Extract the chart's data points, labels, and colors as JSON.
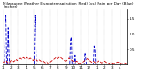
{
  "title": "Milwaukee Weather Evapotranspiration (Red) (vs) Rain per Day (Blue) (Inches)",
  "background_color": "#ffffff",
  "grid_color": "#aaaaaa",
  "et_color": "#cc0000",
  "rain_color": "#0000cc",
  "ylim": [
    0,
    1.8
  ],
  "et_values": [
    0.08,
    0.1,
    0.09,
    0.07,
    0.1,
    0.12,
    0.08,
    0.06,
    0.05,
    0.08,
    0.12,
    0.15,
    0.14,
    0.1,
    0.12,
    0.14,
    0.16,
    0.18,
    0.16,
    0.14,
    0.18,
    0.2,
    0.22,
    0.2,
    0.18,
    0.22,
    0.24,
    0.22,
    0.2,
    0.18,
    0.22,
    0.24,
    0.2,
    0.18,
    0.2,
    0.22,
    0.2,
    0.18,
    0.16,
    0.14,
    0.18,
    0.2,
    0.18,
    0.16,
    0.14,
    0.12,
    0.14,
    0.16,
    0.14,
    0.12,
    0.1,
    0.12,
    0.1,
    0.08,
    0.06,
    0.08,
    0.1,
    0.08,
    0.06,
    0.05,
    0.08,
    0.1,
    0.12,
    0.14,
    0.16,
    0.18,
    0.2,
    0.22,
    0.24,
    0.22,
    0.2,
    0.22,
    0.24,
    0.26,
    0.24,
    0.22,
    0.2,
    0.18,
    0.16,
    0.14,
    0.12,
    0.14,
    0.16,
    0.18,
    0.2,
    0.22,
    0.2,
    0.18,
    0.16,
    0.14,
    0.12,
    0.1,
    0.08,
    0.1,
    0.12,
    0.1,
    0.08,
    0.06,
    0.05,
    0.04,
    0.05,
    0.06,
    0.08,
    0.1,
    0.12,
    0.14,
    0.16,
    0.18,
    0.2,
    0.18,
    0.16,
    0.14,
    0.12,
    0.1,
    0.08,
    0.1,
    0.12,
    0.1,
    0.08,
    0.06,
    0.08,
    0.1,
    0.12,
    0.14,
    0.12,
    0.1,
    0.08,
    0.06,
    0.08,
    0.1,
    0.12,
    0.1,
    0.08,
    0.06,
    0.05,
    0.04,
    0.05,
    0.06,
    0.08,
    0.07,
    0.06,
    0.05,
    0.04,
    0.05,
    0.06,
    0.07,
    0.08,
    0.09,
    0.08,
    0.07,
    0.06,
    0.05,
    0.04,
    0.03,
    0.04,
    0.05,
    0.06,
    0.05,
    0.04,
    0.03
  ],
  "rain_values": [
    0.0,
    0.0,
    0.0,
    1.4,
    1.6,
    0.0,
    0.0,
    1.2,
    0.4,
    0.0,
    0.0,
    0.0,
    0.0,
    0.0,
    0.0,
    0.0,
    0.0,
    0.0,
    0.0,
    0.0,
    0.0,
    0.0,
    0.0,
    0.0,
    0.0,
    0.0,
    0.0,
    0.0,
    0.0,
    0.0,
    0.0,
    0.0,
    0.0,
    0.0,
    0.0,
    0.0,
    0.0,
    0.0,
    0.0,
    0.0,
    0.0,
    1.6,
    1.2,
    0.0,
    0.0,
    0.0,
    0.0,
    0.0,
    0.0,
    0.0,
    0.0,
    0.0,
    0.0,
    0.0,
    0.0,
    0.0,
    0.0,
    0.0,
    0.0,
    0.0,
    0.0,
    0.0,
    0.0,
    0.0,
    0.0,
    0.0,
    0.0,
    0.0,
    0.0,
    0.0,
    0.0,
    0.0,
    0.0,
    0.0,
    0.0,
    0.0,
    0.0,
    0.0,
    0.0,
    0.0,
    0.0,
    0.0,
    0.0,
    0.0,
    0.0,
    0.0,
    0.0,
    0.8,
    0.9,
    0.0,
    0.0,
    0.0,
    0.3,
    0.0,
    0.0,
    0.0,
    0.0,
    0.0,
    0.0,
    0.0,
    0.0,
    0.0,
    0.0,
    0.0,
    0.0,
    0.4,
    0.2,
    0.0,
    0.0,
    0.0,
    0.0,
    0.0,
    0.0,
    0.0,
    0.0,
    0.0,
    0.0,
    0.6,
    0.5,
    0.0,
    0.0,
    0.0,
    0.0,
    0.0,
    0.0,
    0.0,
    0.0,
    0.0,
    0.0,
    0.0,
    0.0,
    0.0,
    0.0,
    0.0,
    0.0,
    0.0,
    0.0,
    0.0,
    0.0,
    0.0,
    0.0,
    0.0,
    0.0,
    0.0,
    0.0,
    0.0,
    0.0,
    0.0,
    0.0,
    0.0,
    0.0,
    0.0,
    0.0,
    0.0,
    0.0,
    0.0,
    0.0,
    0.0,
    0.0,
    0.0
  ],
  "x_tick_positions": [
    0,
    10,
    20,
    30,
    40,
    50,
    60,
    70,
    80,
    90,
    100,
    110,
    120,
    130,
    140,
    150
  ],
  "x_tick_labels": [
    "1",
    "2",
    "3",
    "4",
    "5",
    "6",
    "7",
    "8",
    "9",
    "10",
    "11",
    "12",
    "1",
    "2",
    "3",
    "4"
  ],
  "ytick_values": [
    0.5,
    1.0,
    1.5
  ],
  "title_fontsize": 3.0,
  "tick_fontsize": 3.0,
  "linewidth": 0.6
}
